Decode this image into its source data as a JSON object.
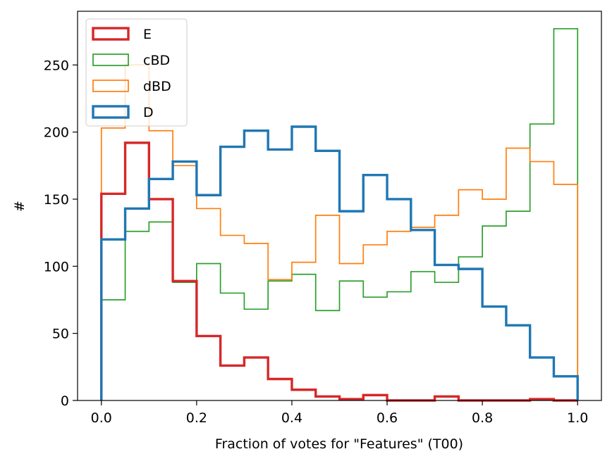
{
  "chart_data": {
    "type": "histogram",
    "xlabel": "Fraction of votes for \"Features\" (T00)",
    "ylabel": "#",
    "xlim": [
      -0.05,
      1.05
    ],
    "ylim": [
      0,
      290
    ],
    "xticks": [
      0.0,
      0.2,
      0.4,
      0.6,
      0.8,
      1.0
    ],
    "xtick_labels": [
      "0.0",
      "0.2",
      "0.4",
      "0.6",
      "0.8",
      "1.0"
    ],
    "yticks": [
      0,
      50,
      100,
      150,
      200,
      250
    ],
    "ytick_labels": [
      "0",
      "50",
      "100",
      "150",
      "200",
      "250"
    ],
    "grid": false,
    "legend_position": "top-left",
    "bin_edges": [
      0.0,
      0.05,
      0.1,
      0.15,
      0.2,
      0.25,
      0.3,
      0.35,
      0.4,
      0.45,
      0.5,
      0.55,
      0.6,
      0.65,
      0.7,
      0.75,
      0.8,
      0.85,
      0.9,
      0.95,
      1.0
    ],
    "series": [
      {
        "name": "cBD",
        "color": "#2ca02c",
        "width": "thin",
        "values": [
          75,
          126,
          133,
          88,
          102,
          80,
          68,
          89,
          94,
          67,
          89,
          77,
          81,
          96,
          88,
          107,
          130,
          141,
          206,
          277
        ]
      },
      {
        "name": "dBD",
        "color": "#ff7f0e",
        "width": "thin",
        "values": [
          203,
          250,
          201,
          175,
          143,
          123,
          117,
          90,
          103,
          138,
          102,
          116,
          126,
          129,
          138,
          157,
          150,
          188,
          178,
          161
        ]
      },
      {
        "name": "E",
        "color": "#d62728",
        "width": "thick",
        "values": [
          154,
          192,
          150,
          89,
          48,
          26,
          32,
          16,
          8,
          3,
          1,
          4,
          0,
          0,
          3,
          0,
          0,
          0,
          1,
          0
        ]
      },
      {
        "name": "D",
        "color": "#1f77b4",
        "width": "thick",
        "values": [
          120,
          143,
          165,
          178,
          153,
          189,
          201,
          187,
          204,
          186,
          141,
          168,
          150,
          127,
          101,
          98,
          70,
          56,
          32,
          18
        ]
      }
    ],
    "legend": [
      {
        "label": "E",
        "color": "#d62728",
        "width": "thick"
      },
      {
        "label": "cBD",
        "color": "#2ca02c",
        "width": "thin"
      },
      {
        "label": "dBD",
        "color": "#ff7f0e",
        "width": "thin"
      },
      {
        "label": "D",
        "color": "#1f77b4",
        "width": "thick"
      }
    ]
  }
}
